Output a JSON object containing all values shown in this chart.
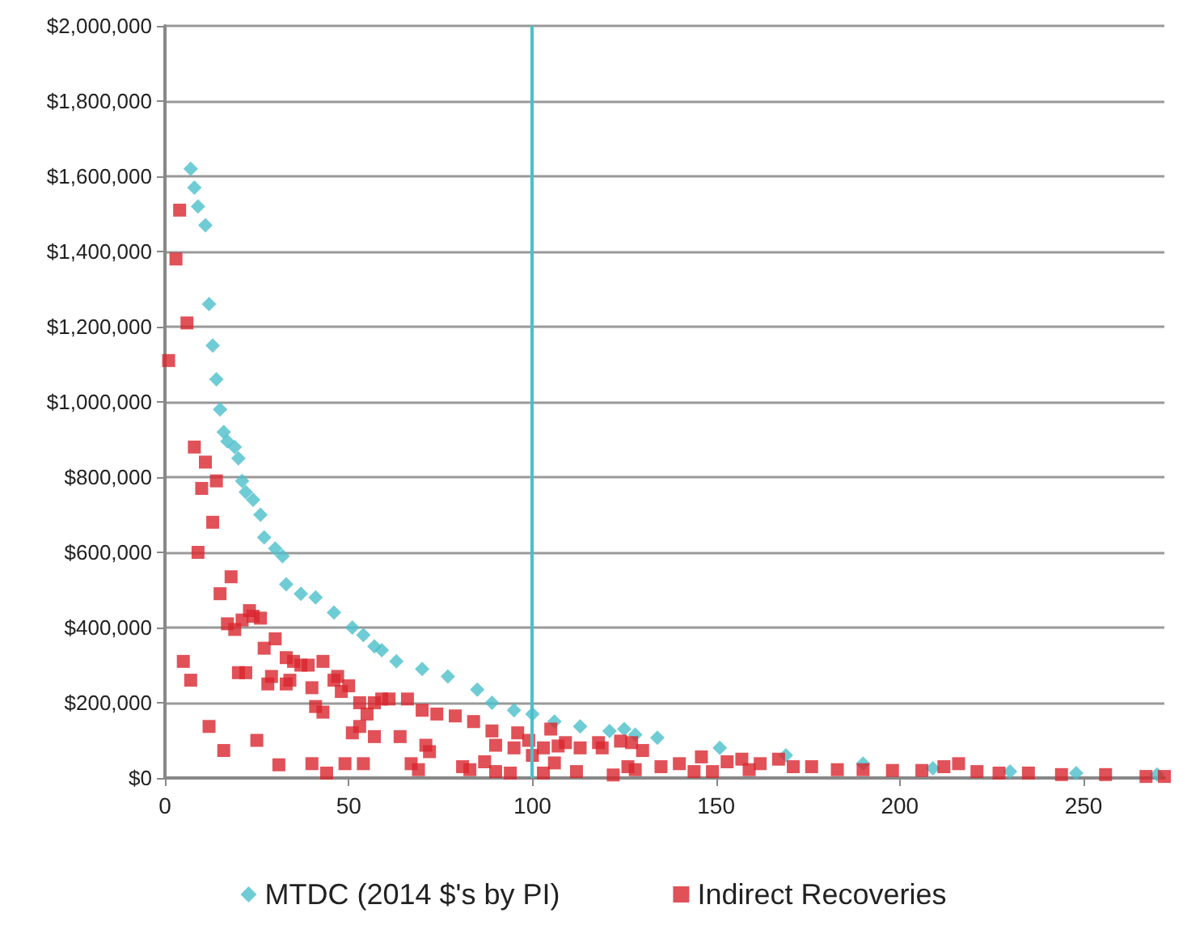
{
  "chart_data": {
    "type": "scatter",
    "xlim": [
      0,
      272
    ],
    "xticks": [
      0,
      50,
      100,
      150,
      200,
      250
    ],
    "ylim": [
      0,
      2000000
    ],
    "yticks": [
      {
        "value": 0,
        "label": "$0"
      },
      {
        "value": 200000,
        "label": "$200,000"
      },
      {
        "value": 400000,
        "label": "$400,000"
      },
      {
        "value": 600000,
        "label": "$600,000"
      },
      {
        "value": 800000,
        "label": "$800,000"
      },
      {
        "value": 1000000,
        "label": "$1,000,000"
      },
      {
        "value": 1200000,
        "label": "$1,200,000"
      },
      {
        "value": 1400000,
        "label": "$1,400,000"
      },
      {
        "value": 1600000,
        "label": "$1,600,000"
      },
      {
        "value": 1800000,
        "label": "$1,800,000"
      },
      {
        "value": 2000000,
        "label": "$2,000,000"
      }
    ],
    "grid": "y",
    "legend": "bottom",
    "ref_lines": [
      {
        "axis": "x",
        "value": 100,
        "color": "#4bbfcb"
      }
    ],
    "series": [
      {
        "name": "MTDC (2014 $'s by PI)",
        "color": "#4bbfcb",
        "marker": "diamond",
        "x": [
          7,
          8,
          9,
          11,
          12,
          13,
          14,
          15,
          16,
          17,
          19,
          20,
          21,
          22,
          24,
          26,
          27,
          30,
          32,
          33,
          37,
          41,
          46,
          51,
          54,
          57,
          59,
          63,
          70,
          77,
          85,
          89,
          95,
          100,
          106,
          113,
          121,
          125,
          128,
          134,
          151,
          169,
          190,
          209,
          230,
          248,
          270
        ],
        "values": [
          1620000,
          1570000,
          1520000,
          1470000,
          1260000,
          1150000,
          1060000,
          980000,
          920000,
          895000,
          880000,
          850000,
          790000,
          760000,
          740000,
          700000,
          640000,
          610000,
          590000,
          515000,
          490000,
          480000,
          440000,
          400000,
          380000,
          350000,
          340000,
          310000,
          290000,
          270000,
          235000,
          200000,
          180000,
          170000,
          150000,
          137000,
          125000,
          130000,
          115000,
          107000,
          80000,
          60000,
          38000,
          26000,
          17000,
          13000,
          9000
        ]
      },
      {
        "name": "Indirect Recoveries",
        "color": "#d9262e",
        "marker": "square",
        "x": [
          1,
          3,
          4,
          5,
          6,
          7,
          8,
          9,
          10,
          11,
          12,
          13,
          14,
          15,
          16,
          17,
          18,
          19,
          20,
          21,
          22,
          23,
          24,
          25,
          26,
          27,
          28,
          29,
          30,
          31,
          33,
          33,
          34,
          35,
          37,
          39,
          40,
          40,
          41,
          43,
          43,
          44,
          46,
          47,
          48,
          49,
          50,
          51,
          53,
          53,
          54,
          55,
          57,
          57,
          59,
          61,
          64,
          66,
          67,
          69,
          70,
          71,
          72,
          74,
          79,
          81,
          83,
          84,
          87,
          89,
          90,
          90,
          94,
          95,
          96,
          99,
          100,
          103,
          103,
          105,
          106,
          107,
          109,
          112,
          113,
          118,
          119,
          122,
          124,
          126,
          127,
          128,
          130,
          135,
          140,
          144,
          146,
          149,
          153,
          157,
          159,
          162,
          167,
          171,
          176,
          183,
          190,
          198,
          206,
          212,
          216,
          221,
          227,
          235,
          244,
          256,
          267,
          272
        ],
        "values": [
          1110000,
          1380000,
          1510000,
          310000,
          1210000,
          260000,
          880000,
          600000,
          770000,
          840000,
          137000,
          680000,
          790000,
          490000,
          73000,
          410000,
          535000,
          395000,
          280000,
          420000,
          280000,
          445000,
          430000,
          100000,
          425000,
          345000,
          250000,
          270000,
          370000,
          35000,
          250000,
          320000,
          260000,
          310000,
          300000,
          300000,
          240000,
          38000,
          190000,
          175000,
          310000,
          13000,
          260000,
          270000,
          230000,
          38000,
          245000,
          120000,
          200000,
          137000,
          38000,
          170000,
          110000,
          200000,
          210000,
          210000,
          110000,
          210000,
          38000,
          22000,
          180000,
          87000,
          70000,
          170000,
          165000,
          30000,
          22000,
          150000,
          43000,
          125000,
          87000,
          17000,
          13000,
          80000,
          120000,
          100000,
          60000,
          80000,
          13000,
          130000,
          40000,
          85000,
          94000,
          17000,
          80000,
          94000,
          80000,
          8000,
          98000,
          30000,
          94000,
          22000,
          73000,
          30000,
          38000,
          17000,
          56000,
          17000,
          43000,
          50000,
          22000,
          38000,
          50000,
          30000,
          30000,
          22000,
          22000,
          20000,
          20000,
          30000,
          38000,
          17000,
          13000,
          13000,
          9000,
          9000,
          4000,
          4000
        ]
      }
    ]
  }
}
